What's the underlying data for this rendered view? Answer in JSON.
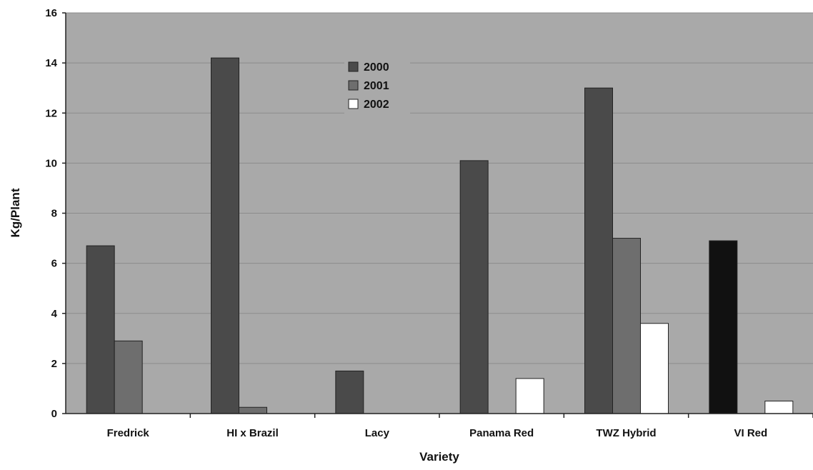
{
  "chart_data": {
    "type": "bar",
    "title": "",
    "xlabel": "Variety",
    "ylabel": "Kg/Plant",
    "ylim": [
      0,
      16
    ],
    "yticks": [
      0,
      2,
      4,
      6,
      8,
      10,
      12,
      14,
      16
    ],
    "grid": true,
    "legend_position": "top-center",
    "categories": [
      "Fredrick",
      "HI x Brazil",
      "Lacy",
      "Panama Red",
      "TWZ Hybrid",
      "VI Red"
    ],
    "series": [
      {
        "name": "2000",
        "color": "#4a4a4a",
        "values": [
          6.7,
          14.2,
          1.7,
          10.1,
          13.0,
          6.9
        ]
      },
      {
        "name": "2001",
        "color": "#6e6e6e",
        "values": [
          2.9,
          0.25,
          0,
          0,
          7.0,
          0
        ]
      },
      {
        "name": "2002",
        "color": "#ffffff",
        "values": [
          0,
          0,
          0,
          1.4,
          3.6,
          0.5
        ]
      }
    ],
    "plot_background": "#a9a9a9"
  }
}
